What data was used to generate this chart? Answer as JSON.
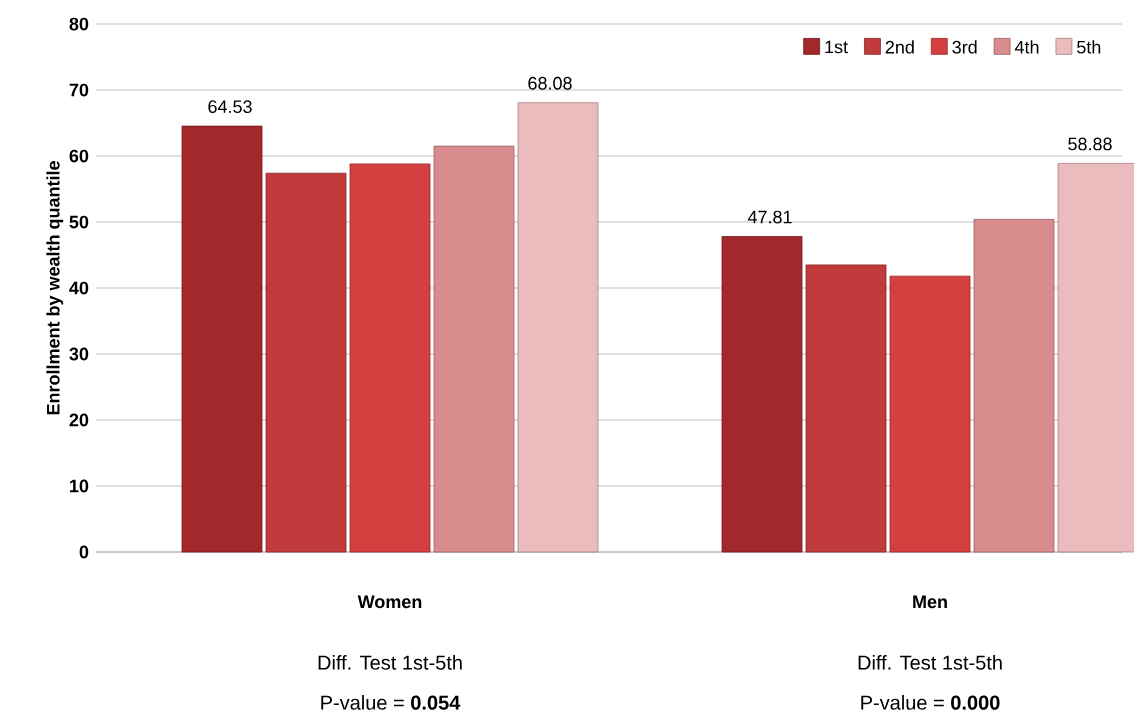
{
  "chart_data": {
    "type": "bar",
    "ylabel": "Enrollment by wealth quantile",
    "categories": [
      "Women",
      "Men"
    ],
    "series": [
      {
        "name": "1st",
        "color": "#a3282b",
        "values": [
          64.53,
          47.81
        ],
        "value_labels": [
          "64.53",
          "47.81"
        ]
      },
      {
        "name": "2nd",
        "color": "#c13a3c",
        "values": [
          57.4,
          43.5
        ]
      },
      {
        "name": "3rd",
        "color": "#d43f3f",
        "values": [
          58.8,
          41.8
        ]
      },
      {
        "name": "4th",
        "color": "#d98c8e",
        "values": [
          61.5,
          50.4
        ]
      },
      {
        "name": "5th",
        "color": "#ebbcbd",
        "values": [
          68.08,
          58.88
        ],
        "value_labels": [
          "68.08",
          "58.88"
        ]
      }
    ],
    "ylim": [
      0,
      80
    ],
    "yticks": [
      0,
      10,
      20,
      30,
      40,
      50,
      60,
      70,
      80
    ],
    "grid": "y",
    "legend": "top right",
    "annotations": [
      "Diff. Test 1st-5th",
      "P-value = **0.054**",
      "Diff. Test 1st-5th",
      "P-value = **0.000**"
    ]
  }
}
